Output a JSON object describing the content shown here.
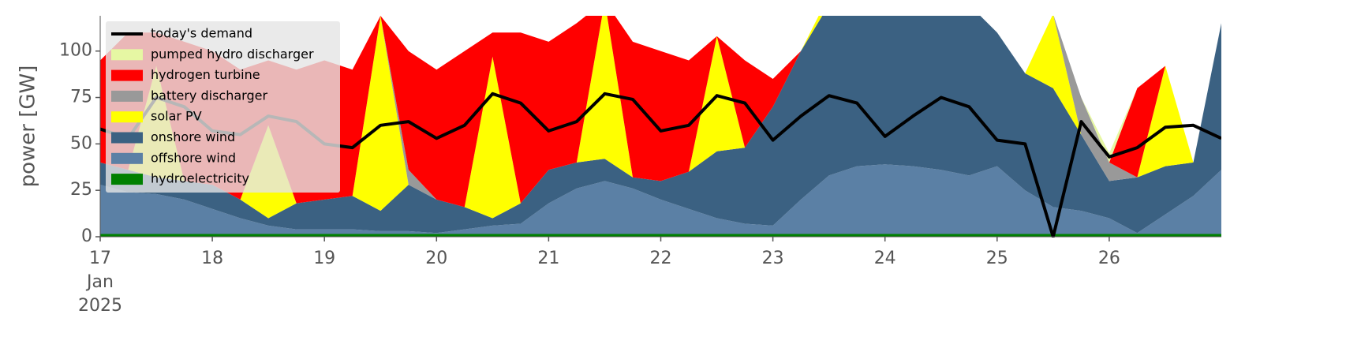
{
  "chart_data": {
    "type": "stacked-area",
    "ylabel": "power [GW]",
    "ylim": [
      0,
      119
    ],
    "yticks": [
      0,
      25,
      50,
      75,
      100
    ],
    "xlim": [
      "2025-01-17T00:00",
      "2025-01-27T00:00"
    ],
    "xticks": [
      {
        "value": "2025-01-17T00:00",
        "label": [
          "17",
          "Jan",
          "2025"
        ]
      },
      {
        "value": "2025-01-18T00:00",
        "label": "18"
      },
      {
        "value": "2025-01-19T00:00",
        "label": "19"
      },
      {
        "value": "2025-01-20T00:00",
        "label": "20"
      },
      {
        "value": "2025-01-21T00:00",
        "label": "21"
      },
      {
        "value": "2025-01-22T00:00",
        "label": "22"
      },
      {
        "value": "2025-01-23T00:00",
        "label": "23"
      },
      {
        "value": "2025-01-24T00:00",
        "label": "24"
      },
      {
        "value": "2025-01-25T00:00",
        "label": "25"
      },
      {
        "value": "2025-01-26T00:00",
        "label": "26"
      }
    ],
    "legend": "upper left",
    "x": [
      "2025-01-17T00:00",
      "2025-01-17T06:00",
      "2025-01-17T12:00",
      "2025-01-17T18:00",
      "2025-01-18T00:00",
      "2025-01-18T06:00",
      "2025-01-18T12:00",
      "2025-01-18T18:00",
      "2025-01-19T00:00",
      "2025-01-19T06:00",
      "2025-01-19T12:00",
      "2025-01-19T18:00",
      "2025-01-20T00:00",
      "2025-01-20T06:00",
      "2025-01-20T12:00",
      "2025-01-20T18:00",
      "2025-01-21T00:00",
      "2025-01-21T06:00",
      "2025-01-21T12:00",
      "2025-01-21T18:00",
      "2025-01-22T00:00",
      "2025-01-22T06:00",
      "2025-01-22T12:00",
      "2025-01-22T18:00",
      "2025-01-23T00:00",
      "2025-01-23T06:00",
      "2025-01-23T12:00",
      "2025-01-23T18:00",
      "2025-01-24T00:00",
      "2025-01-24T06:00",
      "2025-01-24T12:00",
      "2025-01-24T18:00",
      "2025-01-25T00:00",
      "2025-01-25T06:00",
      "2025-01-25T12:00",
      "2025-01-25T18:00",
      "2025-01-26T00:00",
      "2025-01-26T06:00",
      "2025-01-26T12:00",
      "2025-01-26T18:00",
      "2025-01-27T00:00"
    ],
    "demand": {
      "name": "today's demand",
      "color": "#000000",
      "values": [
        58,
        53,
        75,
        70,
        57,
        55,
        65,
        62,
        50,
        48,
        60,
        62,
        53,
        60,
        77,
        72,
        57,
        62,
        77,
        74,
        57,
        60,
        76,
        72,
        52,
        65,
        76,
        72,
        54,
        65,
        75,
        70,
        52,
        50,
        0,
        62,
        43,
        48,
        59,
        60,
        53
      ]
    },
    "series": [
      {
        "name": "hydroelectricity",
        "color": "#008000",
        "values": [
          1.5,
          1.5,
          1.5,
          1.5,
          1.5,
          1.5,
          1.5,
          1.5,
          1.5,
          1.5,
          1.5,
          1.5,
          1.5,
          1.5,
          1.5,
          1.5,
          1.5,
          1.5,
          1.5,
          1.5,
          1.5,
          1.5,
          1.5,
          1.5,
          1.5,
          1.5,
          1.5,
          1.5,
          1.5,
          1.5,
          1.5,
          1.5,
          1.5,
          1.5,
          1.5,
          1.5,
          1.5,
          1.5,
          1.5,
          1.5,
          1.5
        ]
      },
      {
        "name": "offshore wind",
        "color": "#5b80a5",
        "values": [
          26.5,
          22.5,
          21.5,
          18.5,
          13.5,
          8.5,
          4.5,
          2.5,
          2.5,
          2.5,
          1.5,
          1.5,
          0.5,
          2.5,
          4.5,
          5.5,
          16.5,
          24.5,
          28.5,
          24.5,
          18.5,
          13.5,
          8.5,
          5.5,
          4.5,
          18.5,
          31.5,
          36.5,
          37.5,
          36.5,
          34.5,
          31.5,
          36.5,
          23.5,
          14.5,
          12.5,
          8.5,
          0.5,
          10.5,
          20.5,
          34.5
        ]
      },
      {
        "name": "onshore wind",
        "color": "#3b6182",
        "values": [
          12,
          12,
          9,
          10,
          13,
          10,
          4,
          14,
          16,
          18,
          11,
          25,
          18,
          12,
          4,
          11,
          18,
          14,
          12,
          6,
          10,
          20,
          36,
          41,
          64,
          80,
          92,
          87,
          86,
          87,
          84,
          92,
          72,
          63,
          64,
          41,
          20,
          30,
          26,
          18,
          79
        ]
      },
      {
        "name": "solar PV",
        "color": "#ffff00",
        "values": [
          0,
          0,
          60,
          0,
          0,
          0,
          50,
          0,
          0,
          0,
          105,
          0,
          0,
          0,
          87,
          0,
          0,
          0,
          85,
          0,
          0,
          0,
          62,
          0,
          0,
          0,
          5,
          0,
          0,
          0,
          2,
          0,
          0,
          0,
          40,
          0,
          0,
          0,
          54,
          0,
          0
        ]
      },
      {
        "name": "battery discharger",
        "color": "#999999",
        "values": [
          0,
          0,
          0,
          0,
          0,
          0,
          0,
          0,
          0,
          0,
          0,
          8,
          0,
          0,
          0,
          0,
          0,
          0,
          0,
          0,
          0,
          0,
          0,
          0,
          0,
          0,
          0,
          0,
          0,
          0,
          0,
          0,
          0,
          0,
          0,
          20,
          10,
          0,
          0,
          0,
          0
        ]
      },
      {
        "name": "hydrogen turbine",
        "color": "#ff0000",
        "values": [
          55,
          74,
          18,
          75,
          72,
          70,
          35,
          72,
          75,
          68,
          0,
          64,
          70,
          84,
          13,
          92,
          69,
          75,
          0,
          73,
          70,
          60,
          0,
          47,
          15,
          0,
          0,
          0,
          0,
          0,
          0,
          0,
          0,
          0,
          0,
          0,
          0,
          48,
          0,
          0,
          0
        ]
      },
      {
        "name": "pumped hydro discharger",
        "color": "#e6f7a3",
        "values": [
          0,
          0,
          0,
          0,
          0,
          0,
          0,
          0,
          0,
          0,
          0,
          0,
          0,
          0,
          0,
          0,
          0,
          0,
          0,
          0,
          0,
          0,
          0,
          0,
          0,
          0,
          0,
          0,
          0,
          0,
          0,
          0,
          0,
          0,
          0,
          0,
          5,
          0,
          0,
          0,
          0
        ]
      }
    ]
  }
}
